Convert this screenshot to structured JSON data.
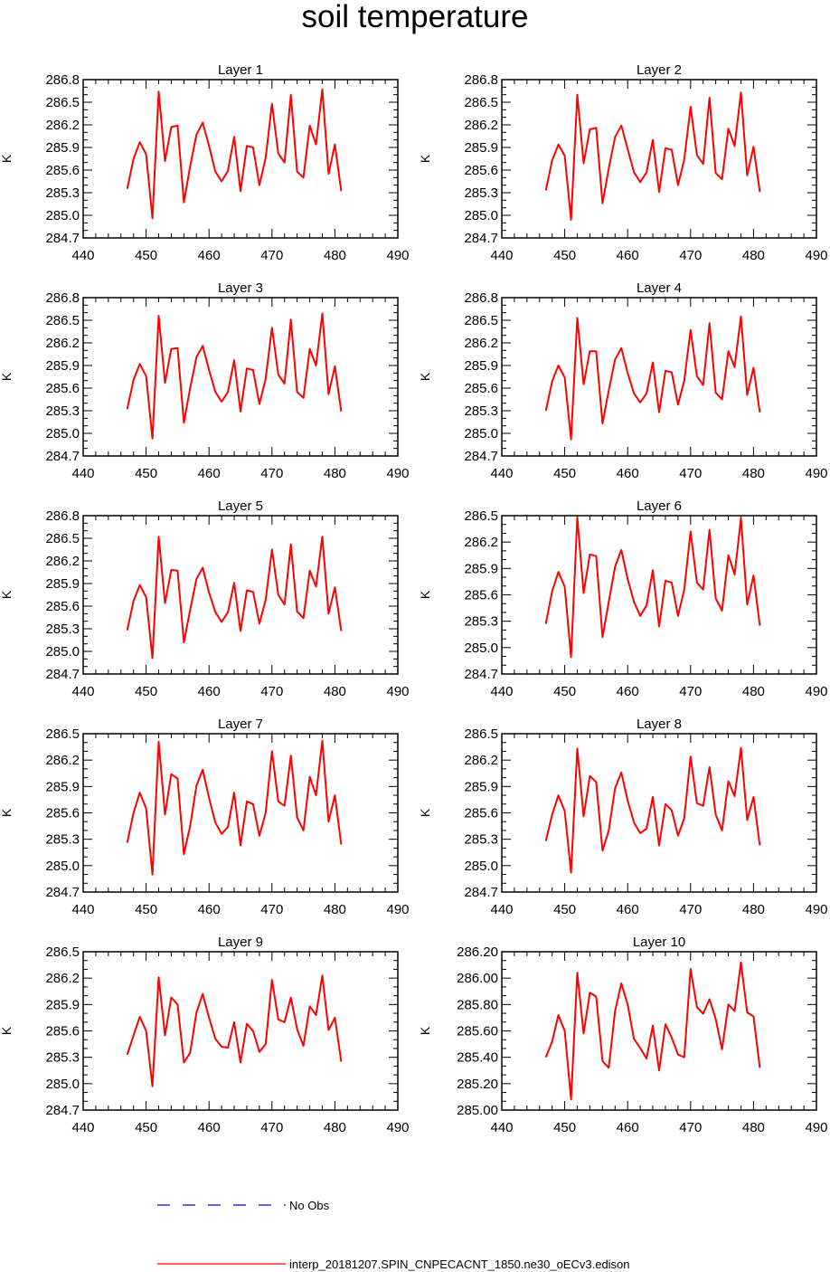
{
  "title": "soil temperature",
  "legend": {
    "entries": [
      {
        "label": "No Obs",
        "color": "#0000ff",
        "style": "dashed"
      },
      {
        "label": "interp_20181207.SPIN_CNPECACNT_1850.ne30_oECv3.edison",
        "color": "#ff0000",
        "style": "solid"
      }
    ]
  },
  "chart_data": [
    {
      "type": "line",
      "title": "Layer 1",
      "xlabel": "",
      "ylabel": "K",
      "xlim": [
        440,
        490
      ],
      "ylim": [
        284.7,
        286.8
      ],
      "xticks": [
        440,
        450,
        460,
        470,
        480,
        490
      ],
      "yticks": [
        284.7,
        285.0,
        285.3,
        285.6,
        285.9,
        286.2,
        286.5,
        286.8
      ],
      "ydecimals": 1,
      "x": [
        447,
        448,
        449,
        450,
        451,
        452,
        453,
        454,
        455,
        456,
        457,
        458,
        459,
        460,
        461,
        462,
        463,
        464,
        465,
        466,
        467,
        468,
        469,
        470,
        471,
        472,
        473,
        474,
        475,
        476,
        477,
        478,
        479,
        480,
        481
      ],
      "series": [
        {
          "name": "interp_20181207.SPIN_CNPECACNT_1850.ne30_oECv3.edison",
          "color": "#ff0000",
          "values": [
            285.35,
            285.75,
            285.97,
            285.81,
            284.96,
            286.64,
            285.72,
            286.17,
            286.19,
            285.17,
            285.65,
            286.07,
            286.23,
            285.92,
            285.58,
            285.45,
            285.59,
            286.04,
            285.32,
            285.92,
            285.9,
            285.4,
            285.76,
            286.48,
            285.82,
            285.7,
            286.6,
            285.58,
            285.5,
            286.19,
            285.94,
            286.67,
            285.55,
            285.94,
            285.32
          ]
        }
      ]
    },
    {
      "type": "line",
      "title": "Layer 2",
      "xlabel": "",
      "ylabel": "K",
      "xlim": [
        440,
        490
      ],
      "ylim": [
        284.7,
        286.8
      ],
      "xticks": [
        440,
        450,
        460,
        470,
        480,
        490
      ],
      "yticks": [
        284.7,
        285.0,
        285.3,
        285.6,
        285.9,
        286.2,
        286.5,
        286.8
      ],
      "ydecimals": 1,
      "x": [
        447,
        448,
        449,
        450,
        451,
        452,
        453,
        454,
        455,
        456,
        457,
        458,
        459,
        460,
        461,
        462,
        463,
        464,
        465,
        466,
        467,
        468,
        469,
        470,
        471,
        472,
        473,
        474,
        475,
        476,
        477,
        478,
        479,
        480,
        481
      ],
      "series": [
        {
          "name": "interp_20181207.SPIN_CNPECACNT_1850.ne30_oECv3.edison",
          "color": "#ff0000",
          "values": [
            285.33,
            285.73,
            285.94,
            285.79,
            284.94,
            286.6,
            285.69,
            286.14,
            286.16,
            285.16,
            285.62,
            286.04,
            286.19,
            285.88,
            285.57,
            285.44,
            285.57,
            286.0,
            285.31,
            285.89,
            285.87,
            285.4,
            285.74,
            286.44,
            285.8,
            285.68,
            286.56,
            285.56,
            285.48,
            286.15,
            285.92,
            286.63,
            285.53,
            285.91,
            285.31
          ]
        }
      ]
    },
    {
      "type": "line",
      "title": "Layer 3",
      "xlabel": "",
      "ylabel": "K",
      "xlim": [
        440,
        490
      ],
      "ylim": [
        284.7,
        286.8
      ],
      "xticks": [
        440,
        450,
        460,
        470,
        480,
        490
      ],
      "yticks": [
        284.7,
        285.0,
        285.3,
        285.6,
        285.9,
        286.2,
        286.5,
        286.8
      ],
      "ydecimals": 1,
      "x": [
        447,
        448,
        449,
        450,
        451,
        452,
        453,
        454,
        455,
        456,
        457,
        458,
        459,
        460,
        461,
        462,
        463,
        464,
        465,
        466,
        467,
        468,
        469,
        470,
        471,
        472,
        473,
        474,
        475,
        476,
        477,
        478,
        479,
        480,
        481
      ],
      "series": [
        {
          "name": "interp_20181207.SPIN_CNPECACNT_1850.ne30_oECv3.edison",
          "color": "#ff0000",
          "values": [
            285.32,
            285.71,
            285.92,
            285.76,
            284.93,
            286.56,
            285.67,
            286.12,
            286.13,
            285.14,
            285.6,
            286.01,
            286.16,
            285.84,
            285.55,
            285.42,
            285.55,
            285.97,
            285.29,
            285.86,
            285.84,
            285.39,
            285.72,
            286.4,
            285.78,
            285.66,
            286.51,
            285.55,
            285.47,
            286.12,
            285.9,
            286.59,
            285.52,
            285.89,
            285.29
          ]
        }
      ]
    },
    {
      "type": "line",
      "title": "Layer 4",
      "xlabel": "",
      "ylabel": "K",
      "xlim": [
        440,
        490
      ],
      "ylim": [
        284.7,
        286.8
      ],
      "xticks": [
        440,
        450,
        460,
        470,
        480,
        490
      ],
      "yticks": [
        284.7,
        285.0,
        285.3,
        285.6,
        285.9,
        286.2,
        286.5,
        286.8
      ],
      "ydecimals": 1,
      "x": [
        447,
        448,
        449,
        450,
        451,
        452,
        453,
        454,
        455,
        456,
        457,
        458,
        459,
        460,
        461,
        462,
        463,
        464,
        465,
        466,
        467,
        468,
        469,
        470,
        471,
        472,
        473,
        474,
        475,
        476,
        477,
        478,
        479,
        480,
        481
      ],
      "series": [
        {
          "name": "interp_20181207.SPIN_CNPECACNT_1850.ne30_oECv3.edison",
          "color": "#ff0000",
          "values": [
            285.3,
            285.69,
            285.9,
            285.74,
            284.92,
            286.53,
            285.65,
            286.09,
            286.09,
            285.13,
            285.57,
            285.98,
            286.13,
            285.8,
            285.53,
            285.41,
            285.53,
            285.94,
            285.28,
            285.83,
            285.81,
            285.38,
            285.7,
            286.37,
            285.76,
            285.64,
            286.46,
            285.54,
            285.45,
            286.09,
            285.88,
            286.55,
            285.51,
            285.87,
            285.28
          ]
        }
      ]
    },
    {
      "type": "line",
      "title": "Layer 5",
      "xlabel": "",
      "ylabel": "K",
      "xlim": [
        440,
        490
      ],
      "ylim": [
        284.7,
        286.8
      ],
      "xticks": [
        440,
        450,
        460,
        470,
        480,
        490
      ],
      "yticks": [
        284.7,
        285.0,
        285.3,
        285.6,
        285.9,
        286.2,
        286.5,
        286.8
      ],
      "ydecimals": 1,
      "x": [
        447,
        448,
        449,
        450,
        451,
        452,
        453,
        454,
        455,
        456,
        457,
        458,
        459,
        460,
        461,
        462,
        463,
        464,
        465,
        466,
        467,
        468,
        469,
        470,
        471,
        472,
        473,
        474,
        475,
        476,
        477,
        478,
        479,
        480,
        481
      ],
      "series": [
        {
          "name": "interp_20181207.SPIN_CNPECACNT_1850.ne30_oECv3.edison",
          "color": "#ff0000",
          "values": [
            285.28,
            285.67,
            285.88,
            285.72,
            284.91,
            286.52,
            285.64,
            286.08,
            286.07,
            285.12,
            285.55,
            285.96,
            286.11,
            285.78,
            285.52,
            285.39,
            285.52,
            285.91,
            285.27,
            285.81,
            285.79,
            285.37,
            285.68,
            286.35,
            285.75,
            285.62,
            286.42,
            285.53,
            285.44,
            286.07,
            285.86,
            286.52,
            285.5,
            285.85,
            285.27
          ]
        }
      ]
    },
    {
      "type": "line",
      "title": "Layer 6",
      "xlabel": "",
      "ylabel": "K",
      "xlim": [
        440,
        490
      ],
      "ylim": [
        284.7,
        286.5
      ],
      "xticks": [
        440,
        450,
        460,
        470,
        480,
        490
      ],
      "yticks": [
        284.7,
        285.0,
        285.3,
        285.6,
        285.9,
        286.2,
        286.5
      ],
      "ydecimals": 1,
      "x": [
        447,
        448,
        449,
        450,
        451,
        452,
        453,
        454,
        455,
        456,
        457,
        458,
        459,
        460,
        461,
        462,
        463,
        464,
        465,
        466,
        467,
        468,
        469,
        470,
        471,
        472,
        473,
        474,
        475,
        476,
        477,
        478,
        479,
        480,
        481
      ],
      "series": [
        {
          "name": "interp_20181207.SPIN_CNPECACNT_1850.ne30_oECv3.edison",
          "color": "#ff0000",
          "values": [
            285.27,
            285.64,
            285.86,
            285.69,
            284.89,
            286.48,
            285.62,
            286.06,
            286.04,
            285.12,
            285.52,
            285.92,
            286.11,
            285.78,
            285.52,
            285.36,
            285.48,
            285.88,
            285.24,
            285.76,
            285.74,
            285.36,
            285.66,
            286.32,
            285.74,
            285.66,
            286.34,
            285.56,
            285.42,
            286.05,
            285.83,
            286.47,
            285.49,
            285.82,
            285.25
          ]
        }
      ]
    },
    {
      "type": "line",
      "title": "Layer 7",
      "xlabel": "",
      "ylabel": "K",
      "xlim": [
        440,
        490
      ],
      "ylim": [
        284.7,
        286.5
      ],
      "xticks": [
        440,
        450,
        460,
        470,
        480,
        490
      ],
      "yticks": [
        284.7,
        285.0,
        285.3,
        285.6,
        285.9,
        286.2,
        286.5
      ],
      "ydecimals": 1,
      "x": [
        447,
        448,
        449,
        450,
        451,
        452,
        453,
        454,
        455,
        456,
        457,
        458,
        459,
        460,
        461,
        462,
        463,
        464,
        465,
        466,
        467,
        468,
        469,
        470,
        471,
        472,
        473,
        474,
        475,
        476,
        477,
        478,
        479,
        480,
        481
      ],
      "series": [
        {
          "name": "interp_20181207.SPIN_CNPECACNT_1850.ne30_oECv3.edison",
          "color": "#ff0000",
          "values": [
            285.26,
            285.6,
            285.83,
            285.65,
            284.9,
            286.41,
            285.58,
            286.04,
            285.99,
            285.13,
            285.45,
            285.91,
            286.09,
            285.77,
            285.49,
            285.36,
            285.44,
            285.83,
            285.23,
            285.73,
            285.7,
            285.34,
            285.6,
            286.3,
            285.73,
            285.68,
            286.25,
            285.55,
            285.4,
            286.01,
            285.8,
            286.42,
            285.5,
            285.8,
            285.24
          ]
        }
      ]
    },
    {
      "type": "line",
      "title": "Layer 8",
      "xlabel": "",
      "ylabel": "K",
      "xlim": [
        440,
        490
      ],
      "ylim": [
        284.7,
        286.5
      ],
      "xticks": [
        440,
        450,
        460,
        470,
        480,
        490
      ],
      "yticks": [
        284.7,
        285.0,
        285.3,
        285.6,
        285.9,
        286.2,
        286.5
      ],
      "ydecimals": 1,
      "x": [
        447,
        448,
        449,
        450,
        451,
        452,
        453,
        454,
        455,
        456,
        457,
        458,
        459,
        460,
        461,
        462,
        463,
        464,
        465,
        466,
        467,
        468,
        469,
        470,
        471,
        472,
        473,
        474,
        475,
        476,
        477,
        478,
        479,
        480,
        481
      ],
      "series": [
        {
          "name": "interp_20181207.SPIN_CNPECACNT_1850.ne30_oECv3.edison",
          "color": "#ff0000",
          "values": [
            285.28,
            285.58,
            285.8,
            285.62,
            284.92,
            286.33,
            285.56,
            286.02,
            285.95,
            285.17,
            285.4,
            285.88,
            286.06,
            285.74,
            285.49,
            285.37,
            285.42,
            285.78,
            285.23,
            285.7,
            285.63,
            285.34,
            285.54,
            286.24,
            285.71,
            285.68,
            286.12,
            285.58,
            285.4,
            285.96,
            285.79,
            286.34,
            285.52,
            285.78,
            285.23
          ]
        }
      ]
    },
    {
      "type": "line",
      "title": "Layer 9",
      "xlabel": "",
      "ylabel": "K",
      "xlim": [
        440,
        490
      ],
      "ylim": [
        284.7,
        286.5
      ],
      "xticks": [
        440,
        450,
        460,
        470,
        480,
        490
      ],
      "yticks": [
        284.7,
        285.0,
        285.3,
        285.6,
        285.9,
        286.2,
        286.5
      ],
      "ydecimals": 1,
      "x": [
        447,
        448,
        449,
        450,
        451,
        452,
        453,
        454,
        455,
        456,
        457,
        458,
        459,
        460,
        461,
        462,
        463,
        464,
        465,
        466,
        467,
        468,
        469,
        470,
        471,
        472,
        473,
        474,
        475,
        476,
        477,
        478,
        479,
        480,
        481
      ],
      "series": [
        {
          "name": "interp_20181207.SPIN_CNPECACNT_1850.ne30_oECv3.edison",
          "color": "#ff0000",
          "values": [
            285.33,
            285.55,
            285.76,
            285.6,
            284.97,
            286.21,
            285.55,
            285.98,
            285.9,
            285.24,
            285.35,
            285.81,
            286.02,
            285.75,
            285.51,
            285.42,
            285.41,
            285.7,
            285.24,
            285.68,
            285.6,
            285.36,
            285.45,
            286.18,
            285.73,
            285.7,
            285.98,
            285.62,
            285.43,
            285.88,
            285.78,
            286.23,
            285.61,
            285.75,
            285.25
          ]
        }
      ]
    },
    {
      "type": "line",
      "title": "Layer 10",
      "xlabel": "",
      "ylabel": "K",
      "xlim": [
        440,
        490
      ],
      "ylim": [
        285.0,
        286.2
      ],
      "xticks": [
        440,
        450,
        460,
        470,
        480,
        490
      ],
      "yticks": [
        285.0,
        285.2,
        285.4,
        285.6,
        285.8,
        286.0,
        286.2
      ],
      "ydecimals": 2,
      "x": [
        447,
        448,
        449,
        450,
        451,
        452,
        453,
        454,
        455,
        456,
        457,
        458,
        459,
        460,
        461,
        462,
        463,
        464,
        465,
        466,
        467,
        468,
        469,
        470,
        471,
        472,
        473,
        474,
        475,
        476,
        477,
        478,
        479,
        480,
        481
      ],
      "series": [
        {
          "name": "interp_20181207.SPIN_CNPECACNT_1850.ne30_oECv3.edison",
          "color": "#ff0000",
          "values": [
            285.4,
            285.52,
            285.72,
            285.6,
            285.08,
            286.04,
            285.58,
            285.89,
            285.86,
            285.37,
            285.32,
            285.75,
            285.96,
            285.8,
            285.54,
            285.47,
            285.39,
            285.64,
            285.3,
            285.65,
            285.55,
            285.42,
            285.4,
            286.07,
            285.78,
            285.73,
            285.84,
            285.69,
            285.46,
            285.8,
            285.75,
            286.12,
            285.74,
            285.71,
            285.32
          ]
        }
      ]
    }
  ]
}
